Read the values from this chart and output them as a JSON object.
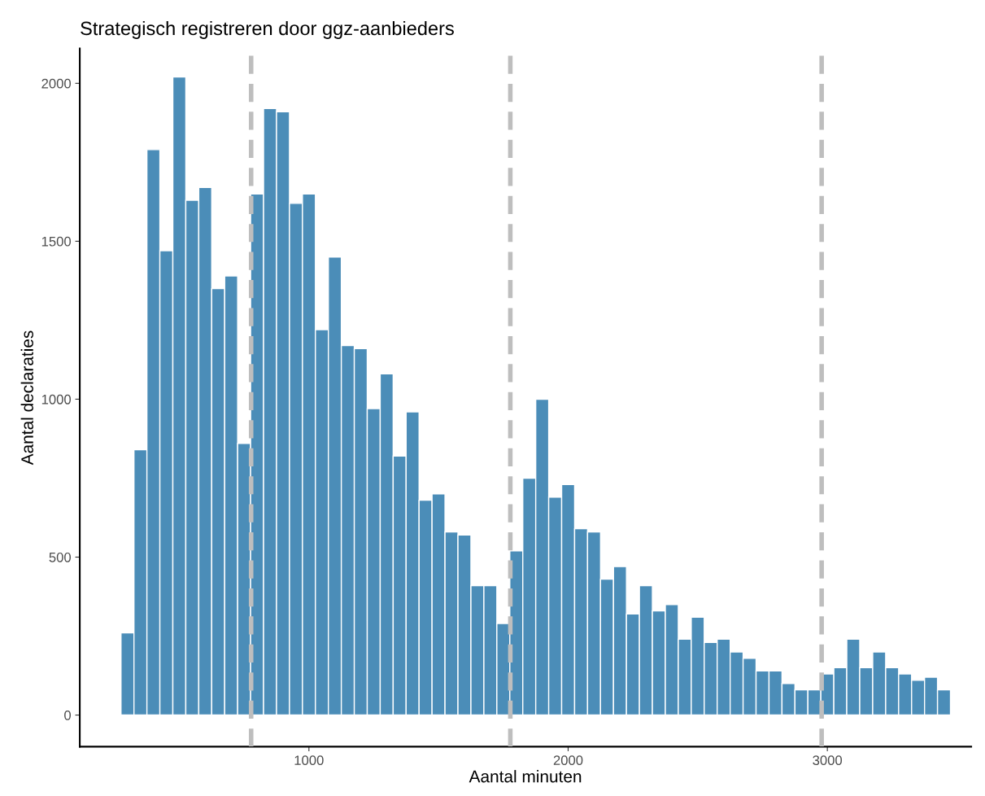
{
  "chart_data": {
    "type": "histogram",
    "title": "Strategisch registreren door ggz-aanbieders",
    "xlabel": "Aantal minuten",
    "ylabel": "Aantal declaraties",
    "bins": [
      275,
      325,
      375,
      425,
      475,
      525,
      575,
      625,
      675,
      725,
      775,
      825,
      875,
      925,
      975,
      1025,
      1075,
      1125,
      1175,
      1225,
      1275,
      1325,
      1375,
      1425,
      1475,
      1525,
      1575,
      1625,
      1675,
      1725,
      1775,
      1825,
      1875,
      1925,
      1975,
      2025,
      2075,
      2125,
      2175,
      2225,
      2275,
      2325,
      2375,
      2425,
      2475,
      2525,
      2575,
      2625,
      2675,
      2725,
      2775,
      2825,
      2875,
      2925,
      2975,
      3025,
      3075,
      3125,
      3175,
      3225,
      3275,
      3325,
      3375,
      3425,
      3475
    ],
    "values": [
      260,
      840,
      1790,
      1470,
      2020,
      1630,
      1670,
      1350,
      1390,
      860,
      1650,
      1920,
      1910,
      1620,
      1650,
      1220,
      1450,
      1170,
      1160,
      970,
      1080,
      820,
      960,
      680,
      700,
      580,
      570,
      410,
      410,
      290,
      520,
      750,
      1000,
      690,
      730,
      590,
      580,
      430,
      470,
      320,
      410,
      330,
      350,
      240,
      310,
      230,
      240,
      200,
      180,
      140,
      140,
      100,
      80,
      80,
      130,
      150,
      240,
      150,
      200,
      150,
      130,
      110,
      120,
      80
    ],
    "color": "#4b8db8",
    "xlim": [
      116,
      3555
    ],
    "ylim": [
      -100,
      2110
    ],
    "xticks": [
      1000,
      2000,
      3000
    ],
    "yticks": [
      0,
      500,
      1000,
      1500,
      2000
    ],
    "grid": false,
    "ref_lines": [
      {
        "axis": "x",
        "value": 777,
        "color": "#bebebe",
        "line_style": "dashed"
      },
      {
        "axis": "x",
        "value": 1777,
        "color": "#bebebe",
        "line_style": "dashed"
      },
      {
        "axis": "x",
        "value": 2978,
        "color": "#bebebe",
        "line_style": "dashed"
      }
    ]
  }
}
